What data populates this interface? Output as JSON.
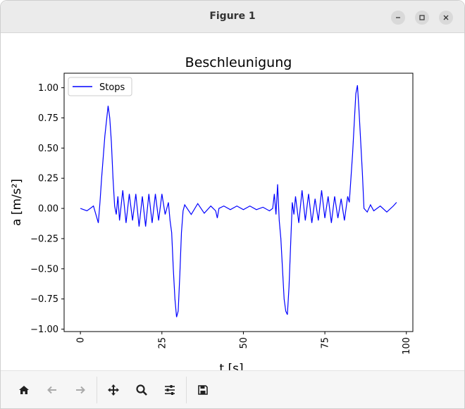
{
  "window": {
    "title": "Figure 1"
  },
  "chart_data": {
    "type": "line",
    "title": "Beschleunigung",
    "xlabel": "t [s]",
    "ylabel": "a [m/s²]",
    "xlim": [
      -5,
      102
    ],
    "ylim": [
      -1.02,
      1.12
    ],
    "xticks": [
      0,
      25,
      50,
      75,
      100
    ],
    "xtick_labels": [
      "0",
      "25",
      "50",
      "75",
      "100"
    ],
    "yticks": [
      1.0,
      0.75,
      0.5,
      0.25,
      0.0,
      -0.25,
      -0.5,
      -0.75,
      -1.0
    ],
    "ytick_labels": [
      "1.00",
      "0.75",
      "0.50",
      "0.25",
      "0.00",
      "−0.25",
      "−0.50",
      "−0.75",
      "−1.00"
    ],
    "grid": false,
    "legend": {
      "position": "upper-left",
      "entries": [
        "Stops"
      ]
    },
    "series": [
      {
        "name": "Stops",
        "color": "#0000ff",
        "x": [
          0,
          2,
          4,
          5.5,
          6,
          6.5,
          7.5,
          8.5,
          9,
          9.5,
          10,
          10.5,
          11,
          11.5,
          12,
          13,
          14,
          15,
          16,
          17,
          18,
          19,
          20,
          21,
          22,
          23,
          24,
          25,
          26,
          27,
          27.5,
          28,
          28.5,
          29,
          29.5,
          30,
          30.5,
          31,
          31.5,
          32,
          34,
          36,
          38,
          40,
          41.5,
          42,
          42.5,
          44,
          46,
          48,
          50,
          52,
          54,
          56,
          58,
          59,
          59.5,
          60,
          60.5,
          61,
          61.5,
          62,
          62.5,
          63,
          63.5,
          64,
          64.5,
          65,
          65.5,
          66,
          67,
          68,
          69,
          70,
          71,
          72,
          73,
          74,
          75,
          76,
          77,
          78,
          79,
          80,
          81,
          82,
          82.5,
          83,
          83.5,
          84,
          84.5,
          85,
          85.5,
          86,
          86.5,
          87,
          88,
          89,
          90,
          92,
          94,
          96,
          97
        ],
        "y": [
          0.0,
          -0.02,
          0.02,
          -0.12,
          0.05,
          0.25,
          0.6,
          0.85,
          0.75,
          0.55,
          0.25,
          0.02,
          -0.05,
          0.1,
          -0.1,
          0.15,
          -0.12,
          0.12,
          -0.1,
          0.12,
          -0.15,
          0.1,
          -0.15,
          0.12,
          -0.12,
          0.12,
          -0.1,
          0.12,
          -0.05,
          0.05,
          -0.1,
          -0.2,
          -0.5,
          -0.75,
          -0.9,
          -0.85,
          -0.55,
          -0.2,
          -0.02,
          0.03,
          -0.05,
          0.04,
          -0.04,
          0.02,
          -0.02,
          -0.08,
          0.0,
          0.02,
          -0.01,
          0.02,
          -0.01,
          0.02,
          -0.01,
          0.01,
          -0.02,
          0.0,
          0.12,
          -0.05,
          0.2,
          -0.1,
          -0.25,
          -0.5,
          -0.75,
          -0.85,
          -0.88,
          -0.65,
          -0.3,
          0.05,
          -0.05,
          0.1,
          -0.12,
          0.15,
          -0.1,
          0.12,
          -0.12,
          0.08,
          -0.1,
          0.15,
          -0.08,
          0.1,
          -0.12,
          0.1,
          -0.08,
          0.08,
          -0.1,
          0.1,
          0.05,
          0.25,
          0.45,
          0.7,
          0.95,
          1.02,
          0.8,
          0.55,
          0.3,
          0.0,
          -0.03,
          0.03,
          -0.02,
          0.02,
          -0.03,
          0.02,
          0.05
        ]
      }
    ]
  },
  "toolbar": {
    "home": "home-icon",
    "back": "arrow-left-icon",
    "forward": "arrow-right-icon",
    "pan": "move-icon",
    "zoom": "search-icon",
    "configure": "sliders-icon",
    "save": "save-icon"
  }
}
